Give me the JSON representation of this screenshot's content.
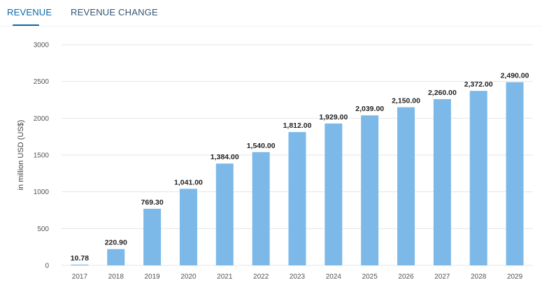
{
  "tabs": [
    {
      "label": "REVENUE",
      "active": true
    },
    {
      "label": "REVENUE CHANGE",
      "active": false
    }
  ],
  "colors": {
    "bar": "#7cb9e8",
    "accent": "#0b6aa8",
    "grid": "#e6e6e6"
  },
  "chart_data": {
    "type": "bar",
    "title": "",
    "xlabel": "",
    "ylabel": "in million USD (US$)",
    "ylim": [
      0,
      3000
    ],
    "yticks": [
      0,
      500,
      1000,
      1500,
      2000,
      2500,
      3000
    ],
    "yticks_labels": [
      "0",
      "500",
      "1000",
      "1500",
      "2000",
      "2500",
      "3000"
    ],
    "grid": true,
    "categories": [
      "2017",
      "2018",
      "2019",
      "2020",
      "2021",
      "2022",
      "2023",
      "2024",
      "2025",
      "2026",
      "2027",
      "2028",
      "2029"
    ],
    "values": [
      10.78,
      220.9,
      769.3,
      1041.0,
      1384.0,
      1540.0,
      1812.0,
      1929.0,
      2039.0,
      2150.0,
      2260.0,
      2372.0,
      2490.0
    ],
    "value_labels": [
      "10.78",
      "220.90",
      "769.30",
      "1,041.00",
      "1,384.00",
      "1,540.00",
      "1,812.00",
      "1,929.00",
      "2,039.00",
      "2,150.00",
      "2,260.00",
      "2,372.00",
      "2,490.00"
    ]
  }
}
